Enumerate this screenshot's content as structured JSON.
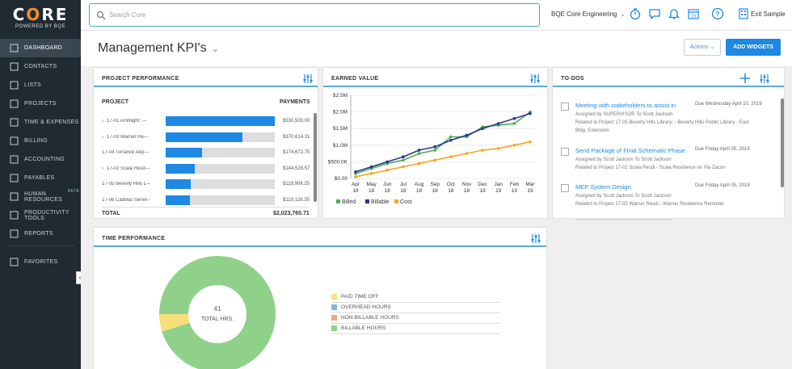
{
  "brand": {
    "logo_text": "CORE",
    "tagline": "POWERED BY BQE"
  },
  "sidebar": {
    "items": [
      {
        "label": "DASHBOARD",
        "icon": "dashboard-icon",
        "active": true
      },
      {
        "label": "CONTACTS",
        "icon": "contacts-icon"
      },
      {
        "label": "LISTS",
        "icon": "lists-icon"
      },
      {
        "label": "PROJECTS",
        "icon": "projects-icon"
      },
      {
        "label": "TIME & EXPENSES",
        "icon": "clock-icon"
      },
      {
        "label": "BILLING",
        "icon": "billing-icon"
      },
      {
        "label": "ACCOUNTING",
        "icon": "accounting-icon"
      },
      {
        "label": "PAYABLES",
        "icon": "payables-icon"
      },
      {
        "label": "HUMAN RESOURCES",
        "icon": "people-icon",
        "badge": "BETA"
      },
      {
        "label": "PRODUCTIVITY TOOLS",
        "icon": "wrench-icon"
      },
      {
        "label": "REPORTS",
        "icon": "reports-icon"
      },
      {
        "label": "FAVORITES",
        "icon": "star-icon"
      }
    ]
  },
  "topbar": {
    "search_placeholder": "Search Core",
    "company": "BQE Core Engineering",
    "exit_label": "Exit Sample",
    "calendar_day": "23"
  },
  "page": {
    "title": "Management KPI's",
    "actions_label": "Actions",
    "add_widgets_label": "ADD WIDGETS"
  },
  "project_performance": {
    "title": "PROJECT PERFORMANCE",
    "col_project": "PROJECT",
    "col_payments": "PAYMENTS",
    "rows": [
      {
        "name": "17-01 Arnhlight: ---",
        "amount": "$530,500.00",
        "pct": 1.0,
        "expand": true
      },
      {
        "name": "17-03 Warner Re---",
        "amount": "$370,614.31",
        "pct": 0.7,
        "expand": true
      },
      {
        "name": "17-04 Torrance Airp---",
        "amount": "$174,672.75",
        "pct": 0.33,
        "expand": false
      },
      {
        "name": "17-02 Scala Resd---",
        "amount": "$144,528.57",
        "pct": 0.27,
        "expand": true
      },
      {
        "name": "17-05 Beverly Hills L---",
        "amount": "$119,908.25",
        "pct": 0.23,
        "expand": false
      },
      {
        "name": "17-06 Cadillac Servit---",
        "amount": "$119,128.35",
        "pct": 0.22,
        "expand": false
      }
    ],
    "total_label": "TOTAL",
    "total_amount": "$2,023,765.71"
  },
  "earned_value": {
    "title": "EARNED VALUE"
  },
  "todos": {
    "title": "TO-DOS",
    "items": [
      {
        "title": "Meeting with stakeholders to assist in",
        "due": "Due Wednesday April 10, 2019",
        "lines": [
          "Assigned by SUPERVISOR To Scott Jackson",
          "Related to Project 17-05 Beverly Hills Library: - Beverly Hills Public Library - East",
          "Bldg. Extension"
        ]
      },
      {
        "title": "Send Package of Final Schematic Phase",
        "due": "Due Friday April 05, 2019",
        "lines": [
          "Assigned by Scott Jackson To Scott Jackson",
          "Related to Project 17-02 Scala Resdi - Scala Residence on Via Zacon"
        ]
      },
      {
        "title": "MEP System Design",
        "due": "Due Friday April 05, 2019",
        "lines": [
          "Assigned by Scott Jackson To Scott Jackson",
          "Related to Project 17-03 Warner Resdi - Warner Residence Remodel"
        ]
      }
    ]
  },
  "time_performance": {
    "title": "TIME PERFORMANCE",
    "center_value": "41",
    "center_label": "TOTAL HRS.",
    "legend": [
      {
        "label": "PAID TIME OFF",
        "color": "#f7e07a"
      },
      {
        "label": "OVERHEAD HOURS",
        "color": "#7fb6e8"
      },
      {
        "label": "NON-BILLABLE HOURS",
        "color": "#f2a38a"
      },
      {
        "label": "BILLABLE HOURS",
        "color": "#8fd18a"
      }
    ],
    "values": [
      2,
      0,
      0,
      39
    ]
  },
  "chart_data": [
    {
      "type": "line",
      "title": "EARNED VALUE",
      "categories": [
        "Apr 18",
        "May 18",
        "Jun 18",
        "Jul 18",
        "Aug 18",
        "Sep 18",
        "Oct 18",
        "Nov 18",
        "Dec 18",
        "Jan 19",
        "Feb 19",
        "Mar 19"
      ],
      "y_ticks": [
        "$0.00",
        "$500.0K",
        "$1.0M",
        "$1.5M",
        "$2.0M",
        "$2.5M"
      ],
      "ylim": [
        0,
        2500000
      ],
      "series": [
        {
          "name": "Billed",
          "color": "#4caf50",
          "values": [
            150000,
            300000,
            450000,
            550000,
            750000,
            850000,
            1250000,
            1250000,
            1550000,
            1600000,
            1650000,
            2000000
          ]
        },
        {
          "name": "Billable",
          "color": "#283593",
          "values": [
            200000,
            350000,
            500000,
            650000,
            850000,
            950000,
            1150000,
            1300000,
            1500000,
            1650000,
            1800000,
            1950000
          ]
        },
        {
          "name": "Cost",
          "color": "#f5a623",
          "values": [
            50000,
            150000,
            250000,
            350000,
            450000,
            550000,
            650000,
            750000,
            850000,
            900000,
            1000000,
            1100000
          ]
        }
      ]
    },
    {
      "type": "pie",
      "title": "TIME PERFORMANCE",
      "categories": [
        "PAID TIME OFF",
        "OVERHEAD HOURS",
        "NON-BILLABLE HOURS",
        "BILLABLE HOURS"
      ],
      "values": [
        2,
        0,
        0,
        39
      ]
    },
    {
      "type": "bar",
      "title": "PROJECT PERFORMANCE",
      "categories": [
        "17-01",
        "17-03",
        "17-04",
        "17-02",
        "17-05",
        "17-06"
      ],
      "values": [
        530500.0,
        370614.31,
        174672.75,
        144528.57,
        119908.25,
        119128.35
      ]
    }
  ]
}
